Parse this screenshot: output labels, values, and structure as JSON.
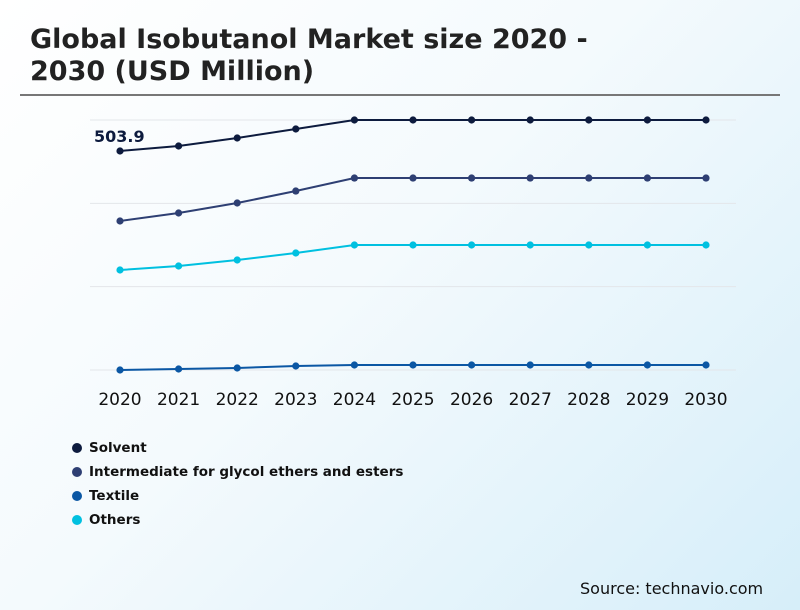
{
  "chart_data": {
    "type": "line",
    "title": "Global Isobutanol Market size 2020 - 2030 (USD Million)",
    "x": [
      "2020",
      "2021",
      "2022",
      "2023",
      "2024",
      "2025",
      "2026",
      "2027",
      "2028",
      "2029",
      "2030"
    ],
    "ylim": [
      0,
      575.2
    ],
    "grid": true,
    "legend_position": "bottom-left",
    "series": [
      {
        "name": "Solvent",
        "color": "#0d1b3e",
        "values": [
          503.9,
          515.4,
          533.8,
          554.5,
          575.2,
          575.2,
          575.2,
          575.2,
          575.2,
          575.2,
          575.2
        ]
      },
      {
        "name": "Intermediate for glycol ethers and esters",
        "color": "#2e3f73",
        "values": [
          342.8,
          361.2,
          384.2,
          411.8,
          441.7,
          441.7,
          441.7,
          441.7,
          441.7,
          441.7,
          441.7
        ]
      },
      {
        "name": "Textile",
        "color": "#0b57a4",
        "values": [
          0,
          2.3,
          4.6,
          9.2,
          11.5,
          11.5,
          11.5,
          11.5,
          11.5,
          11.5,
          11.5
        ]
      },
      {
        "name": "Others",
        "color": "#00c0e0",
        "values": [
          230.1,
          239.3,
          253.1,
          269.2,
          287.6,
          287.6,
          287.6,
          287.6,
          287.6,
          287.6,
          287.6
        ]
      }
    ],
    "annotations": [
      {
        "series": "Solvent",
        "x": "2020",
        "text": "503.9"
      }
    ]
  },
  "source": "Source: technavio.com"
}
